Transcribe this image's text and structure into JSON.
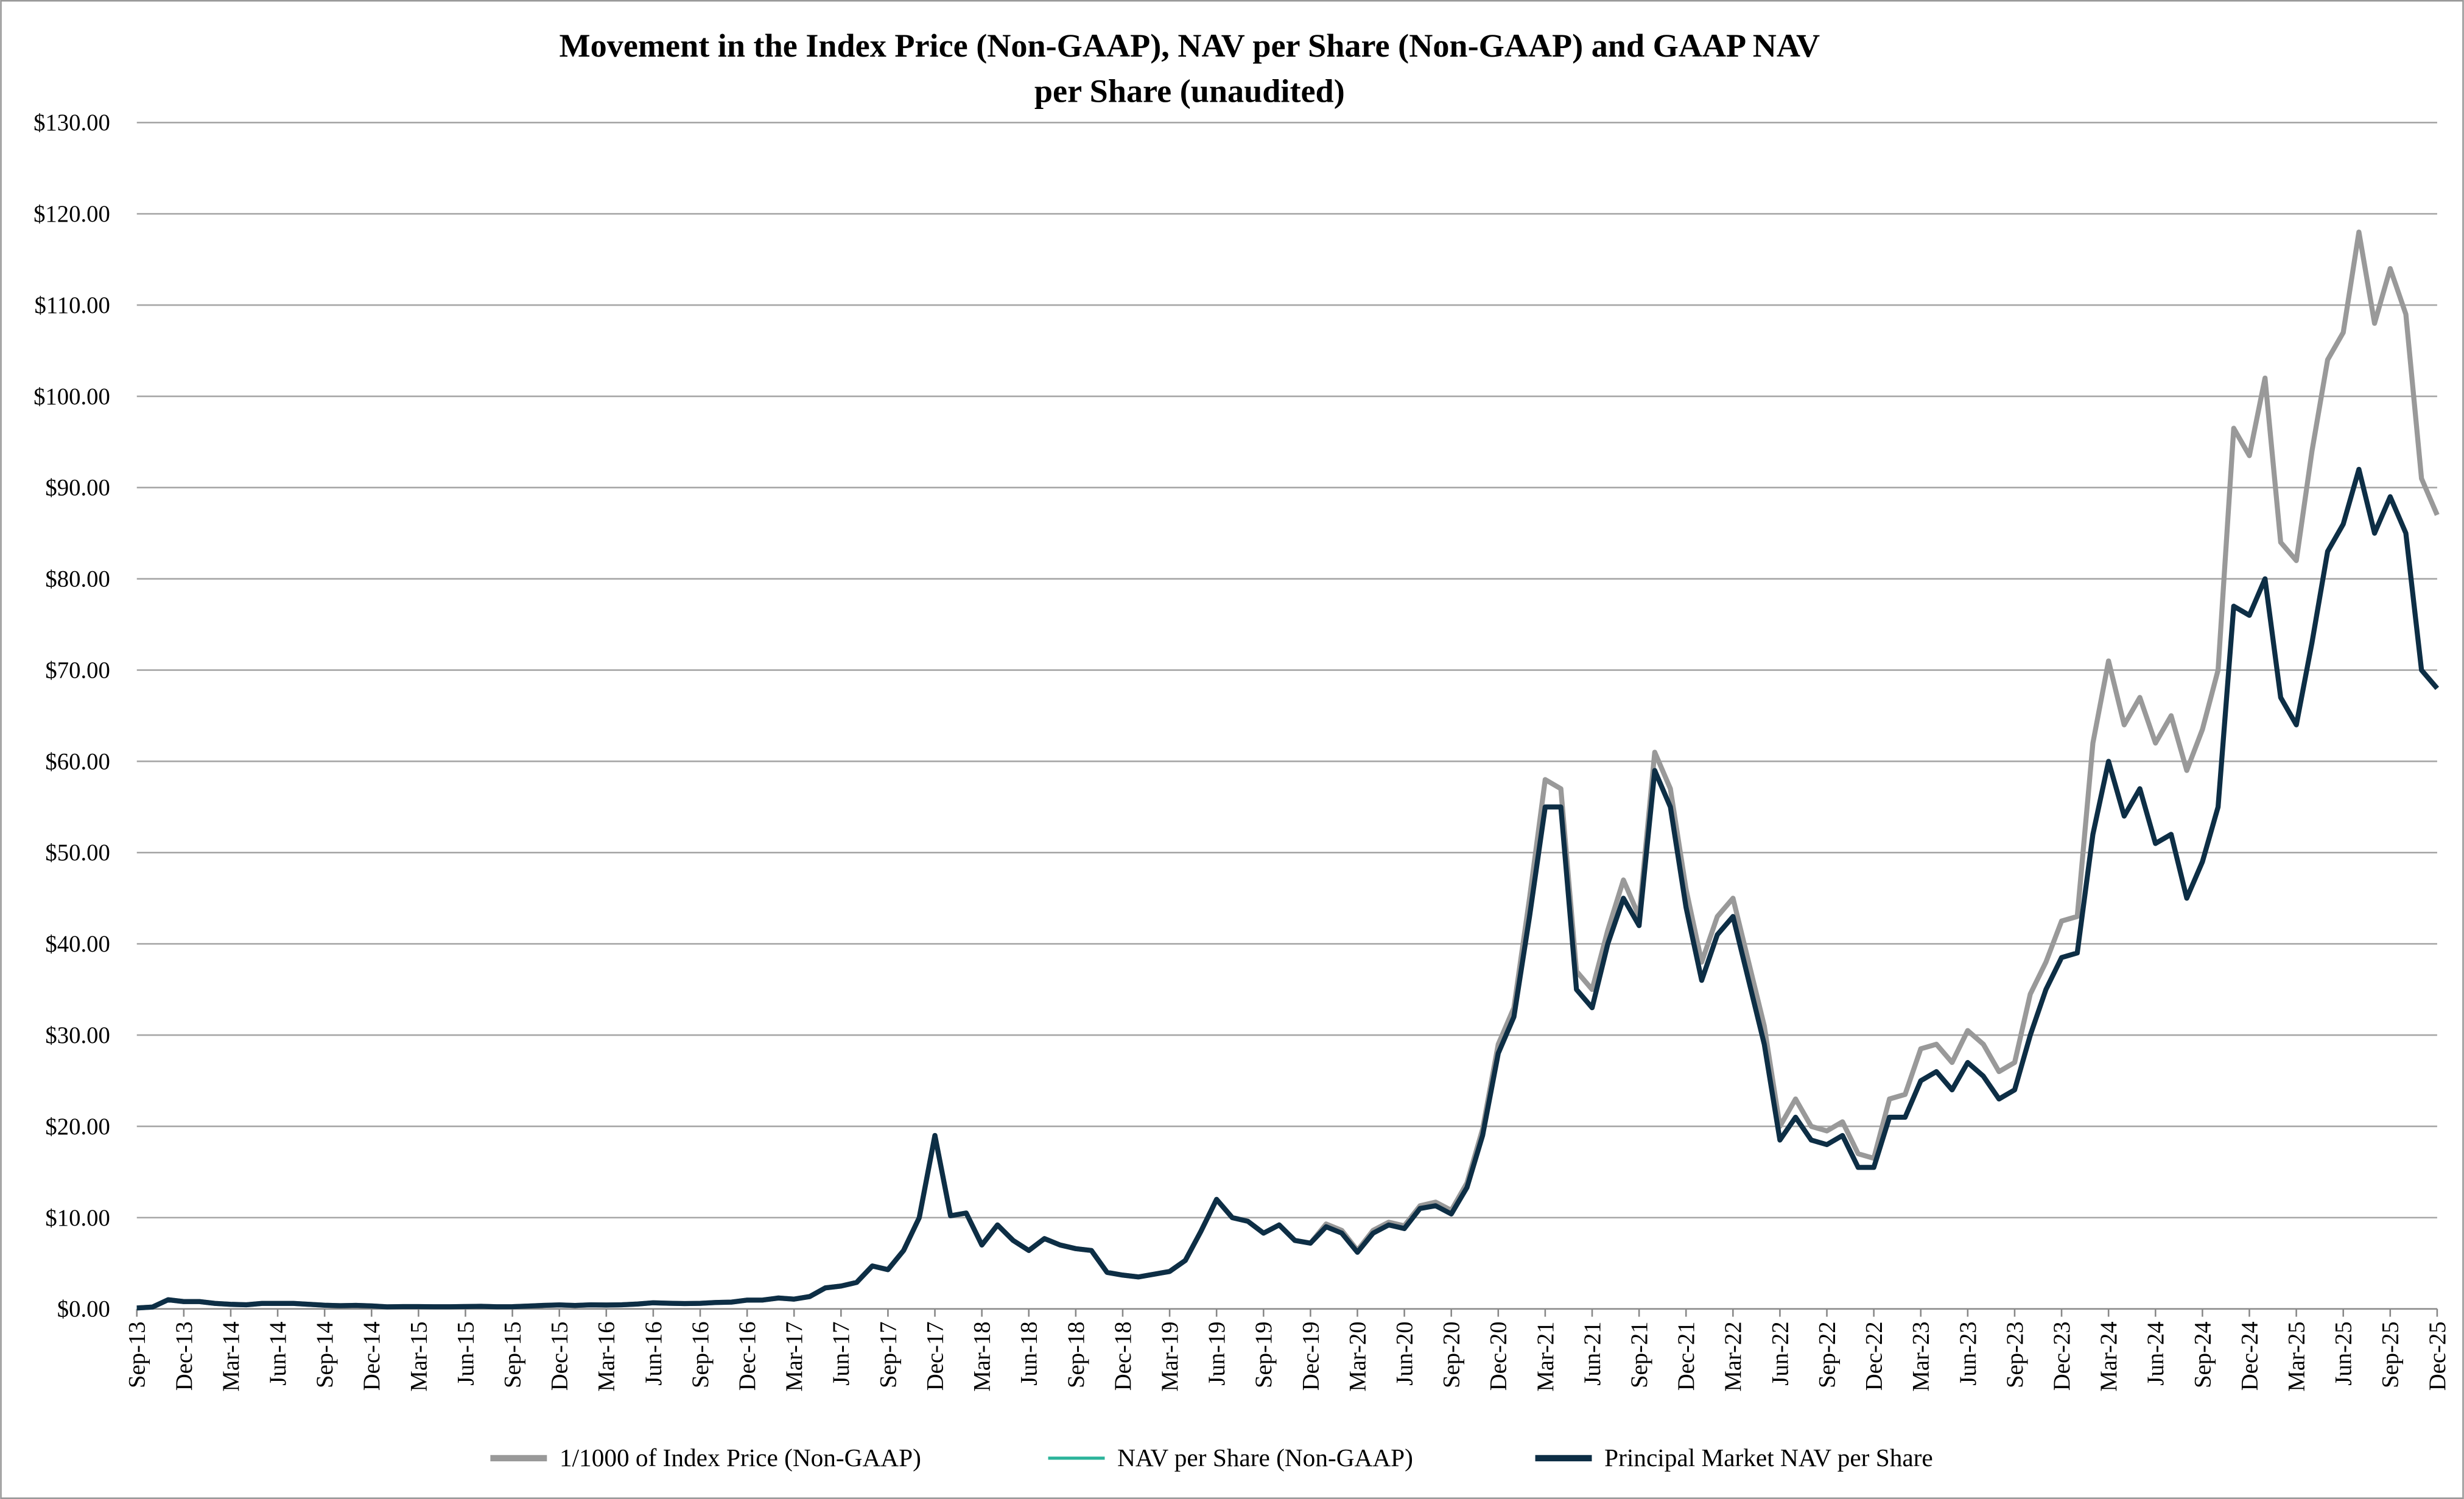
{
  "chart_data": {
    "type": "line",
    "title": [
      "Movement in the Index Price (Non-GAAP), NAV per Share (Non-GAAP) and GAAP NAV",
      "per Share (unaudited)"
    ],
    "categories": [
      "Sep-13",
      null,
      null,
      "Dec-13",
      null,
      null,
      "Mar-14",
      null,
      null,
      "Jun-14",
      null,
      null,
      "Sep-14",
      null,
      null,
      "Dec-14",
      null,
      null,
      "Mar-15",
      null,
      null,
      "Jun-15",
      null,
      null,
      "Sep-15",
      null,
      null,
      "Dec-15",
      null,
      null,
      "Mar-16",
      null,
      null,
      "Jun-16",
      null,
      null,
      "Sep-16",
      null,
      null,
      "Dec-16",
      null,
      null,
      "Mar-17",
      null,
      null,
      "Jun-17",
      null,
      null,
      "Sep-17",
      null,
      null,
      "Dec-17",
      null,
      null,
      "Mar-18",
      null,
      null,
      "Jun-18",
      null,
      null,
      "Sep-18",
      null,
      null,
      "Dec-18",
      null,
      null,
      "Mar-19",
      null,
      null,
      "Jun-19",
      null,
      null,
      "Sep-19",
      null,
      null,
      "Dec-19",
      null,
      null,
      "Mar-20",
      null,
      null,
      "Jun-20",
      null,
      null,
      "Sep-20",
      null,
      null,
      "Dec-20",
      null,
      null,
      "Mar-21",
      null,
      null,
      "Jun-21",
      null,
      null,
      "Sep-21",
      null,
      null,
      "Dec-21",
      null,
      null,
      "Mar-22",
      null,
      null,
      "Jun-22",
      null,
      null,
      "Sep-22",
      null,
      null,
      "Dec-22",
      null,
      null,
      "Mar-23",
      null,
      null,
      "Jun-23",
      null,
      null,
      "Sep-23",
      null,
      null,
      "Dec-23",
      null,
      null,
      "Mar-24",
      null,
      null,
      "Jun-24",
      null,
      null,
      "Sep-24",
      null,
      null,
      "Dec-24",
      null,
      null,
      "Mar-25",
      null,
      null,
      "Jun-25",
      null,
      null,
      "Sep-25",
      null,
      null,
      "Dec-25"
    ],
    "series": [
      {
        "name": "1/1000 of Index Price (Non-GAAP)",
        "color": "#999999",
        "values": [
          0.1,
          0.2,
          1.0,
          0.8,
          0.8,
          0.6,
          0.5,
          0.45,
          0.6,
          0.6,
          0.6,
          0.5,
          0.4,
          0.35,
          0.38,
          0.32,
          0.22,
          0.25,
          0.25,
          0.23,
          0.23,
          0.26,
          0.28,
          0.23,
          0.24,
          0.31,
          0.38,
          0.43,
          0.37,
          0.44,
          0.42,
          0.45,
          0.53,
          0.67,
          0.62,
          0.58,
          0.61,
          0.7,
          0.74,
          0.96,
          0.97,
          1.19,
          1.07,
          1.35,
          2.3,
          2.5,
          2.9,
          4.7,
          4.3,
          6.4,
          10,
          19,
          10.2,
          10.5,
          7,
          9.2,
          7.5,
          6.4,
          7.7,
          7,
          6.6,
          6.4,
          4,
          3.7,
          3.5,
          3.8,
          4.1,
          5.3,
          8.5,
          12,
          10,
          9.6,
          8.3,
          9.2,
          7.5,
          7.2,
          9.3,
          8.6,
          6.4,
          8.6,
          9.5,
          9.1,
          11.3,
          11.7,
          10.8,
          13.8,
          19.7,
          29,
          33,
          45,
          58,
          57,
          37,
          35,
          41.5,
          47,
          43,
          61,
          57,
          46,
          38,
          43,
          45,
          38,
          31,
          20,
          23,
          20,
          19.5,
          20.5,
          17,
          16.5,
          23,
          23.5,
          28.5,
          29,
          27,
          30.5,
          29,
          26,
          27,
          34.5,
          38,
          42.5,
          43,
          62,
          71,
          64,
          67,
          62,
          65,
          59,
          63.5,
          70,
          96.5,
          93.5,
          102,
          84,
          82,
          94,
          104,
          107,
          118,
          108,
          114,
          109,
          91,
          87
        ]
      },
      {
        "name": "NAV per Share (Non-GAAP)",
        "color": "#2bb39a",
        "values": [
          0.1,
          0.2,
          1.0,
          0.8,
          0.8,
          0.6,
          0.5,
          0.45,
          0.6,
          0.6,
          0.6,
          0.5,
          0.4,
          0.35,
          0.38,
          0.32,
          0.22,
          0.25,
          0.25,
          0.23,
          0.23,
          0.26,
          0.28,
          0.23,
          0.24,
          0.31,
          0.38,
          0.43,
          0.37,
          0.44,
          0.42,
          0.45,
          0.53,
          0.67,
          0.62,
          0.58,
          0.61,
          0.7,
          0.74,
          0.96,
          0.97,
          1.19,
          1.07,
          1.35,
          2.3,
          2.5,
          2.9,
          4.7,
          4.3,
          6.4,
          10,
          19,
          10.2,
          10.5,
          7,
          9.2,
          7.5,
          6.4,
          7.7,
          7,
          6.6,
          6.4,
          4,
          3.7,
          3.5,
          3.8,
          4.1,
          5.3,
          8.5,
          12,
          10,
          9.6,
          8.3,
          9.2,
          7.5,
          7.2,
          9,
          8.3,
          6.2,
          8.3,
          9.2,
          8.8,
          11,
          11.3,
          10.4,
          13.3,
          19,
          28,
          32,
          43,
          55,
          55,
          35,
          33,
          40,
          45,
          42,
          59,
          55,
          44,
          36,
          41,
          43,
          36,
          29,
          18.5,
          21,
          18.5,
          18,
          19,
          15.5,
          15.5,
          21,
          21,
          25,
          26,
          24,
          27,
          25.5,
          23,
          24,
          30,
          35,
          38.5,
          39,
          52,
          60,
          54,
          57,
          51,
          52,
          45,
          49,
          55,
          77,
          76,
          80,
          67,
          64,
          73,
          83,
          86,
          92,
          85,
          89,
          85,
          70,
          68
        ]
      },
      {
        "name": "Principal Market NAV per Share",
        "color": "#0d2e45",
        "values": [
          0.1,
          0.2,
          1.0,
          0.8,
          0.8,
          0.6,
          0.5,
          0.45,
          0.6,
          0.6,
          0.6,
          0.5,
          0.4,
          0.35,
          0.38,
          0.32,
          0.22,
          0.25,
          0.25,
          0.23,
          0.23,
          0.26,
          0.28,
          0.23,
          0.24,
          0.31,
          0.38,
          0.43,
          0.37,
          0.44,
          0.42,
          0.45,
          0.53,
          0.67,
          0.62,
          0.58,
          0.61,
          0.7,
          0.74,
          0.96,
          0.97,
          1.19,
          1.07,
          1.35,
          2.3,
          2.5,
          2.9,
          4.7,
          4.3,
          6.4,
          10,
          19,
          10.2,
          10.5,
          7,
          9.2,
          7.5,
          6.4,
          7.7,
          7,
          6.6,
          6.4,
          4,
          3.7,
          3.5,
          3.8,
          4.1,
          5.3,
          8.5,
          12,
          10,
          9.6,
          8.3,
          9.2,
          7.5,
          7.2,
          9,
          8.3,
          6.2,
          8.3,
          9.2,
          8.8,
          11,
          11.3,
          10.4,
          13.3,
          19,
          28,
          32,
          43,
          55,
          55,
          35,
          33,
          40,
          45,
          42,
          59,
          55,
          44,
          36,
          41,
          43,
          36,
          29,
          18.5,
          21,
          18.5,
          18,
          19,
          15.5,
          15.5,
          21,
          21,
          25,
          26,
          24,
          27,
          25.5,
          23,
          24,
          30,
          35,
          38.5,
          39,
          52,
          60,
          54,
          57,
          51,
          52,
          45,
          49,
          55,
          77,
          76,
          80,
          67,
          64,
          73,
          83,
          86,
          92,
          85,
          89,
          85,
          70,
          68
        ]
      }
    ],
    "ylim": [
      0,
      130
    ],
    "yticks": [
      {
        "value": 0,
        "label": "$0.00"
      },
      {
        "value": 10,
        "label": "$10.00"
      },
      {
        "value": 20,
        "label": "$20.00"
      },
      {
        "value": 30,
        "label": "$30.00"
      },
      {
        "value": 40,
        "label": "$40.00"
      },
      {
        "value": 50,
        "label": "$50.00"
      },
      {
        "value": 60,
        "label": "$60.00"
      },
      {
        "value": 70,
        "label": "$70.00"
      },
      {
        "value": 80,
        "label": "$80.00"
      },
      {
        "value": 90,
        "label": "$90.00"
      },
      {
        "value": 100,
        "label": "$100.00"
      },
      {
        "value": 110,
        "label": "$110.00"
      },
      {
        "value": 120,
        "label": "$120.00"
      },
      {
        "value": 130,
        "label": "$130.00"
      }
    ],
    "grid": true,
    "legend": "bottom"
  }
}
